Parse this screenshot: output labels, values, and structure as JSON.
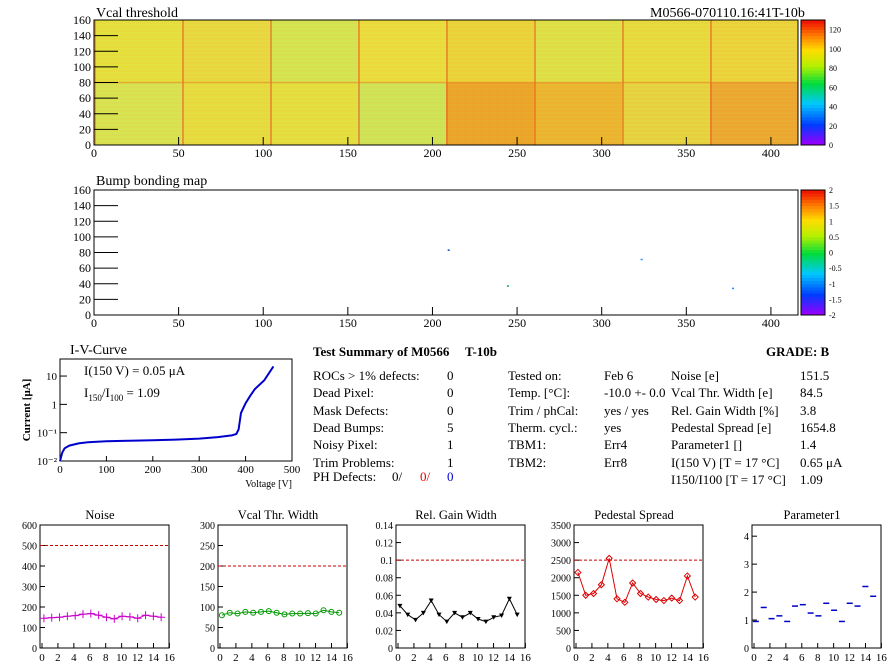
{
  "header": {
    "map1_title": "Vcal threshold",
    "module_id": "M0566-070110.16:41T-10b",
    "map2_title": "Bump bonding map"
  },
  "maps": {
    "x_ticks": [
      0,
      50,
      100,
      150,
      200,
      250,
      300,
      350,
      400
    ],
    "y_ticks": [
      0,
      20,
      40,
      60,
      80,
      100,
      120,
      140,
      160
    ],
    "xlim": [
      0,
      416
    ],
    "ylim": [
      0,
      160
    ],
    "vcal_palette_ticks": [
      0,
      20,
      40,
      60,
      80,
      100,
      120
    ],
    "bump_palette_ticks": [
      "-2",
      "-1.5",
      "-1",
      "-0.5",
      "0",
      "0.5",
      "1",
      "1.5",
      "2"
    ],
    "bump_points": [
      {
        "x": 209,
        "y": 84,
        "color": "#0050c8"
      },
      {
        "x": 244,
        "y": 38,
        "color": "#00b050"
      },
      {
        "x": 323,
        "y": 72,
        "color": "#2090ff"
      },
      {
        "x": 377,
        "y": 35,
        "color": "#2090ff"
      }
    ]
  },
  "iv": {
    "title": "I-V-Curve",
    "ylabel": "Current [μA]",
    "xlabel": "Voltage [V]",
    "note_line1": "I(150 V) = 0.05 μA",
    "note_line2_a": "I",
    "note_line2_sub1": "150",
    "note_line2_b": "/I",
    "note_line2_sub2": "100",
    "note_line2_c": " =  1.09",
    "x_ticks": [
      0,
      100,
      200,
      300,
      400,
      500
    ],
    "y_ticks": [
      "10⁻²",
      "10⁻¹",
      "1",
      "10"
    ],
    "chart_data": {
      "type": "line",
      "x": [
        0,
        5,
        10,
        20,
        40,
        60,
        100,
        150,
        200,
        250,
        300,
        340,
        370,
        380,
        385,
        390,
        400,
        410,
        420,
        440,
        460
      ],
      "y": [
        0.01,
        0.02,
        0.028,
        0.035,
        0.042,
        0.046,
        0.05,
        0.052,
        0.054,
        0.057,
        0.062,
        0.07,
        0.08,
        0.09,
        0.13,
        0.5,
        1.1,
        2,
        3.5,
        7,
        22
      ],
      "xlim": [
        0,
        500
      ],
      "ylim": [
        0.01,
        40
      ],
      "log_y": true
    }
  },
  "summary": {
    "title": "Test Summary of M0566",
    "variant": "T-10b",
    "grade_label": "GRADE:  B",
    "left": [
      {
        "label": "ROCs > 1% defects:",
        "value": "0"
      },
      {
        "label": "Dead Pixel:",
        "value": "0"
      },
      {
        "label": "Mask Defects:",
        "value": "0"
      },
      {
        "label": "Dead Bumps:",
        "value": "5"
      },
      {
        "label": "Noisy Pixel:",
        "value": "1"
      },
      {
        "label": "Trim Problems:",
        "value": "1"
      }
    ],
    "ph_label": "PH Defects:",
    "ph_values": [
      {
        "v": "0/",
        "color": "#000000"
      },
      {
        "v": "0/",
        "color": "#e00000"
      },
      {
        "v": "0",
        "color": "#0000cc"
      }
    ],
    "mid": [
      {
        "label": "Tested on:",
        "value": "Feb 6"
      },
      {
        "label": "Temp. [°C]:",
        "value": "-10.0 +- 0.0"
      },
      {
        "label": "Trim / phCal:",
        "value": "yes / yes"
      },
      {
        "label": "Therm. cycl.:",
        "value": "yes"
      },
      {
        "label": "TBM1:",
        "value": "Err4"
      },
      {
        "label": "TBM2:",
        "value": "Err8"
      }
    ],
    "right": [
      {
        "label": "Noise [e]",
        "value": "151.5"
      },
      {
        "label": "Vcal Thr. Width [e]",
        "value": "84.5"
      },
      {
        "label": "Rel. Gain Width [%]",
        "value": "3.8"
      },
      {
        "label": "Pedestal Spread [e]",
        "value": "1654.8"
      },
      {
        "label": "Parameter1 []",
        "value": "1.4"
      },
      {
        "label": "I(150 V) [T = 17 °C]",
        "value": "0.65 μA"
      },
      {
        "label": "I150/I100  [T = 17 °C]",
        "value": "1.09"
      }
    ]
  },
  "small_plots": [
    {
      "title": "Noise",
      "color": "#cc00cc",
      "ylim": [
        0,
        600
      ],
      "yticks": [
        0,
        100,
        200,
        300,
        400,
        500,
        600
      ],
      "limit": 500,
      "chart_data": {
        "type": "line",
        "x": [
          0,
          1,
          2,
          3,
          4,
          5,
          6,
          7,
          8,
          9,
          10,
          11,
          12,
          13,
          14,
          15
        ],
        "y": [
          145,
          148,
          150,
          155,
          158,
          165,
          168,
          160,
          150,
          142,
          155,
          152,
          145,
          160,
          155,
          150
        ]
      }
    },
    {
      "title": "Vcal Thr. Width",
      "color": "#009900",
      "ylim": [
        0,
        300
      ],
      "yticks": [
        0,
        50,
        100,
        150,
        200,
        250,
        300
      ],
      "limit": 200,
      "chart_data": {
        "type": "line",
        "x": [
          0,
          1,
          2,
          3,
          4,
          5,
          6,
          7,
          8,
          9,
          10,
          11,
          12,
          13,
          14,
          15
        ],
        "y": [
          80,
          86,
          84,
          88,
          86,
          88,
          90,
          86,
          82,
          84,
          84,
          85,
          84,
          92,
          88,
          86
        ]
      }
    },
    {
      "title": "Rel. Gain Width",
      "color": "#000000",
      "ylim": [
        0,
        0.14
      ],
      "yticks": [
        0,
        0.02,
        0.04,
        0.06,
        0.08,
        0.1,
        0.12,
        0.14
      ],
      "limit": 0.1,
      "chart_data": {
        "type": "line",
        "x": [
          0,
          1,
          2,
          3,
          4,
          5,
          6,
          7,
          8,
          9,
          10,
          11,
          12,
          13,
          14,
          15
        ],
        "y": [
          0.048,
          0.038,
          0.032,
          0.04,
          0.054,
          0.038,
          0.03,
          0.04,
          0.035,
          0.04,
          0.033,
          0.03,
          0.035,
          0.037,
          0.056,
          0.038
        ]
      }
    },
    {
      "title": "Pedestal Spread",
      "color": "#dd0000",
      "ylim": [
        0,
        3500
      ],
      "yticks": [
        0,
        500,
        1000,
        1500,
        2000,
        2500,
        3000,
        3500
      ],
      "limit": 2500,
      "chart_data": {
        "type": "line",
        "x": [
          0,
          1,
          2,
          3,
          4,
          5,
          6,
          7,
          8,
          9,
          10,
          11,
          12,
          13,
          14,
          15
        ],
        "y": [
          2150,
          1500,
          1550,
          1800,
          2550,
          1400,
          1300,
          1850,
          1550,
          1450,
          1380,
          1350,
          1420,
          1350,
          2050,
          1450
        ]
      }
    },
    {
      "title": "Parameter1",
      "color": "#0000cc",
      "ylim": [
        0,
        4.4
      ],
      "yticks": [
        0,
        1,
        2,
        3,
        4
      ],
      "limit": null,
      "chart_data": {
        "type": "scatter",
        "x": [
          0,
          1,
          2,
          3,
          4,
          5,
          6,
          7,
          8,
          9,
          10,
          11,
          12,
          13,
          14,
          15
        ],
        "y": [
          0.95,
          1.45,
          1.05,
          1.15,
          0.95,
          1.5,
          1.55,
          1.25,
          1.15,
          1.6,
          1.35,
          0.95,
          1.6,
          1.5,
          2.2,
          1.85
        ]
      }
    }
  ]
}
